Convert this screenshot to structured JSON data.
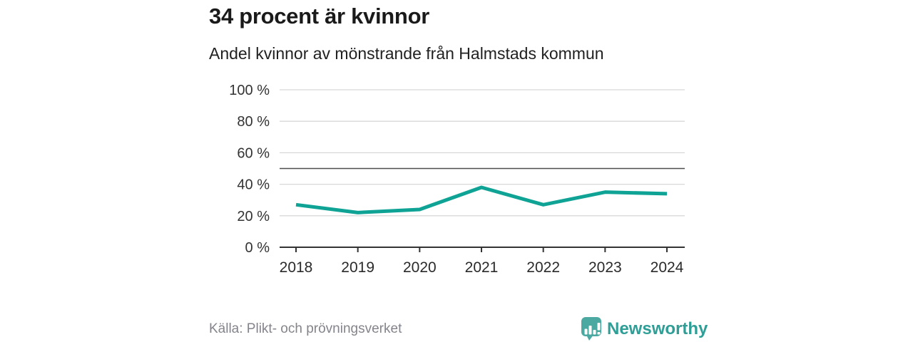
{
  "header": {
    "title": "34 procent är kvinnor",
    "subtitle": "Andel kvinnor av mönstrande från Halmstads kommun"
  },
  "chart_data": {
    "type": "line",
    "categories": [
      "2018",
      "2019",
      "2020",
      "2021",
      "2022",
      "2023",
      "2024"
    ],
    "series": [
      {
        "name": "Andel kvinnor av mönstrande",
        "values": [
          27,
          22,
          24,
          38,
          27,
          35,
          34
        ]
      }
    ],
    "unit": "%",
    "ylim": [
      0,
      100
    ],
    "yticks": [
      0,
      20,
      40,
      60,
      80,
      100
    ],
    "ytick_suffix": " %",
    "reference_line": 50,
    "grid": true,
    "legend": "none",
    "line_color": "#0fa396"
  },
  "footer": {
    "source": "Källa: Plikt- och prövningsverket",
    "brand": "Newsworthy"
  },
  "colors": {
    "accent_teal": "#0fa396",
    "brand_icon_teal": "#4ba9a1",
    "brand_text_teal": "#2e9e96",
    "grid_gray": "#d8d8d8",
    "reference_gray": "#4d4d4d",
    "axis_dark": "#333333",
    "source_gray": "#84848c"
  }
}
